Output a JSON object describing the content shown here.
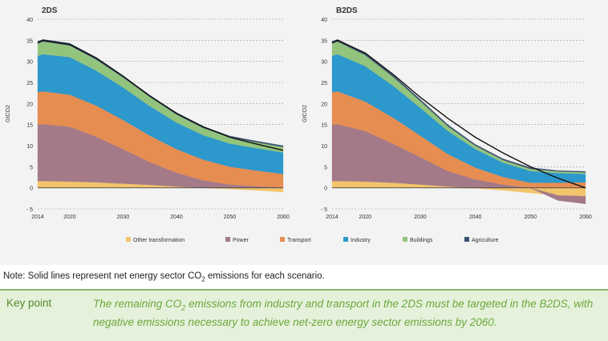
{
  "chart_data": [
    {
      "type": "area",
      "title": "2DS",
      "ylabel": "GtCO2",
      "ylim": [
        -5,
        40
      ],
      "yticks": [
        "- 5",
        "0",
        "5",
        "10",
        "15",
        "20",
        "25",
        "30",
        "35",
        "40"
      ],
      "xticks": [
        "2014",
        "2020",
        "2030",
        "2040",
        "2050",
        "2060"
      ],
      "x": [
        2014,
        2015,
        2020,
        2025,
        2030,
        2035,
        2040,
        2045,
        2050,
        2055,
        2060
      ],
      "series": [
        {
          "name": "Other transformation",
          "color": "#f2c46b",
          "values": [
            1.6,
            1.6,
            1.5,
            1.3,
            1.0,
            0.7,
            0.3,
            0.0,
            -0.3,
            -0.6,
            -1.0
          ]
        },
        {
          "name": "Power",
          "color": "#a47a88",
          "values": [
            13.4,
            13.5,
            13.0,
            10.8,
            8.2,
            5.4,
            3.3,
            1.8,
            0.8,
            0.4,
            0.1
          ]
        },
        {
          "name": "Transport",
          "color": "#e68d52",
          "values": [
            7.7,
            7.8,
            7.6,
            7.4,
            6.9,
            6.3,
            5.6,
            4.9,
            4.2,
            3.7,
            3.2
          ]
        },
        {
          "name": "Industry",
          "color": "#2c98cc",
          "values": [
            8.6,
            8.8,
            8.9,
            8.3,
            7.7,
            7.0,
            6.3,
            5.8,
            5.5,
            5.3,
            5.1
          ]
        },
        {
          "name": "Buildings",
          "color": "#93c47d",
          "values": [
            2.9,
            3.0,
            2.8,
            2.6,
            2.4,
            2.2,
            1.9,
            1.7,
            1.5,
            1.4,
            1.3
          ]
        },
        {
          "name": "Agriculture",
          "color": "#3a5070",
          "values": [
            0.5,
            0.5,
            0.5,
            0.5,
            0.4,
            0.4,
            0.4,
            0.4,
            0.3,
            0.3,
            0.3
          ]
        }
      ],
      "net_line": [
        34.5,
        35.0,
        34.0,
        30.8,
        26.5,
        21.8,
        17.7,
        14.5,
        12.0,
        10.4,
        8.9
      ]
    },
    {
      "type": "area",
      "title": "B2DS",
      "ylabel": "GtCO2",
      "ylim": [
        -5,
        40
      ],
      "yticks": [
        "- 5",
        "0",
        "5",
        "10",
        "15",
        "20",
        "25",
        "30",
        "35",
        "40"
      ],
      "xticks": [
        "2014",
        "2020",
        "2030",
        "2040",
        "2050",
        "2060"
      ],
      "x": [
        2014,
        2015,
        2020,
        2025,
        2030,
        2035,
        2040,
        2045,
        2050,
        2055,
        2060
      ],
      "series": [
        {
          "name": "Other transformation",
          "color": "#f2c46b",
          "values": [
            1.6,
            1.6,
            1.5,
            1.2,
            0.8,
            0.3,
            -0.1,
            -0.6,
            -1.2,
            -1.8,
            -2.0
          ]
        },
        {
          "name": "Power",
          "color": "#a47a88",
          "values": [
            13.4,
            13.5,
            12.0,
            9.3,
            6.5,
            3.7,
            2.0,
            0.8,
            0.0,
            -1.2,
            -1.8
          ]
        },
        {
          "name": "Transport",
          "color": "#e68d52",
          "values": [
            7.7,
            7.8,
            7.0,
            6.2,
            5.1,
            4.0,
            2.8,
            1.8,
            1.2,
            1.2,
            1.3
          ]
        },
        {
          "name": "Industry",
          "color": "#2c98cc",
          "values": [
            8.6,
            8.8,
            8.4,
            7.6,
            6.6,
            5.5,
            4.4,
            3.4,
            2.8,
            2.3,
            2.0
          ]
        },
        {
          "name": "Buildings",
          "color": "#93c47d",
          "values": [
            2.9,
            3.0,
            2.6,
            2.1,
            1.6,
            1.1,
            0.8,
            0.6,
            0.5,
            0.4,
            0.4
          ]
        },
        {
          "name": "Agriculture",
          "color": "#3a5070",
          "values": [
            0.5,
            0.5,
            0.5,
            0.4,
            0.4,
            0.4,
            0.3,
            0.3,
            0.3,
            0.2,
            0.2
          ]
        }
      ],
      "net_line": [
        34.5,
        35.0,
        32.0,
        27.0,
        21.5,
        16.5,
        12.0,
        8.3,
        5.0,
        2.3,
        0.0
      ]
    }
  ],
  "note": {
    "prefix": "Note: Solid lines represent net energy sector CO",
    "sub": "2",
    "suffix": " emissions for each scenario."
  },
  "keypoint": {
    "label": "Key point",
    "text_a": "The remaining CO",
    "text_sub": "2",
    "text_b": " emissions from industry and transport in the 2DS must be targeted in the B2DS, with negative emissions necessary to achieve net-zero energy sector emissions by 2060."
  }
}
